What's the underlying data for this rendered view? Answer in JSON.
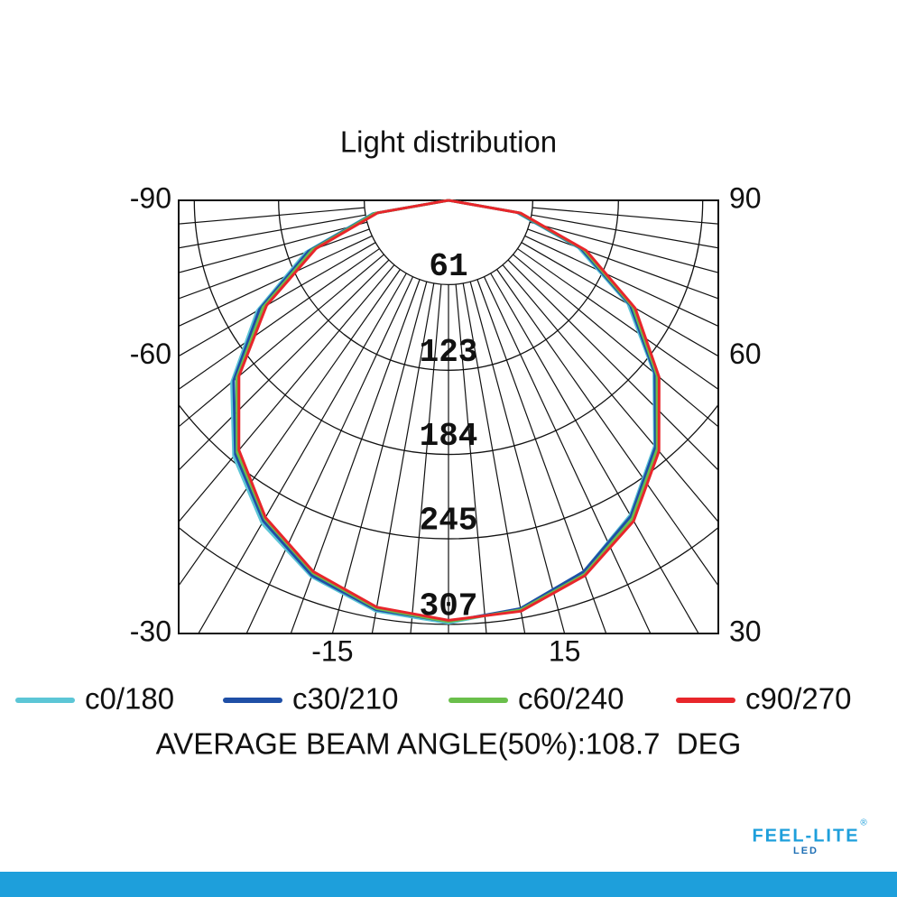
{
  "chart_data": {
    "type": "polar",
    "title": "Light distribution",
    "angles": [
      -90,
      -80,
      -70,
      -60,
      -50,
      -40,
      -30,
      -20,
      -10,
      0,
      10,
      20,
      30,
      40,
      50,
      60,
      70,
      80,
      90
    ],
    "series": [
      {
        "name": "c0/180",
        "color": "#5cc6d6",
        "values": [
          0,
          56,
          110,
          160,
          205,
          242,
          270,
          290,
          302,
          306,
          300,
          286,
          263,
          232,
          194,
          150,
          100,
          50,
          0
        ]
      },
      {
        "name": "c30/210",
        "color": "#1f4fa6",
        "values": [
          0,
          55,
          108,
          158,
          203,
          240,
          268,
          289,
          301,
          305,
          300,
          286,
          264,
          233,
          195,
          152,
          102,
          51,
          0
        ]
      },
      {
        "name": "c60/240",
        "color": "#6abf4b",
        "values": [
          0,
          54,
          105,
          155,
          200,
          238,
          266,
          287,
          300,
          305,
          301,
          288,
          266,
          235,
          197,
          154,
          104,
          52,
          0
        ]
      },
      {
        "name": "c90/270",
        "color": "#e8262b",
        "values": [
          0,
          52,
          102,
          152,
          198,
          236,
          265,
          286,
          299,
          304,
          302,
          289,
          268,
          237,
          199,
          156,
          106,
          53,
          0
        ]
      }
    ],
    "rlim": [
      0,
      307
    ],
    "rticks": [
      61,
      123,
      184,
      245,
      307
    ],
    "angle_ticks": [
      -90,
      -60,
      -30,
      -15,
      15,
      30,
      60,
      90
    ],
    "annotation": "AVERAGE BEAM ANGLE(50%):108.7  DEG",
    "logo": {
      "name": "FEEL-LITE",
      "sub": "LED",
      "mark": "®"
    }
  }
}
